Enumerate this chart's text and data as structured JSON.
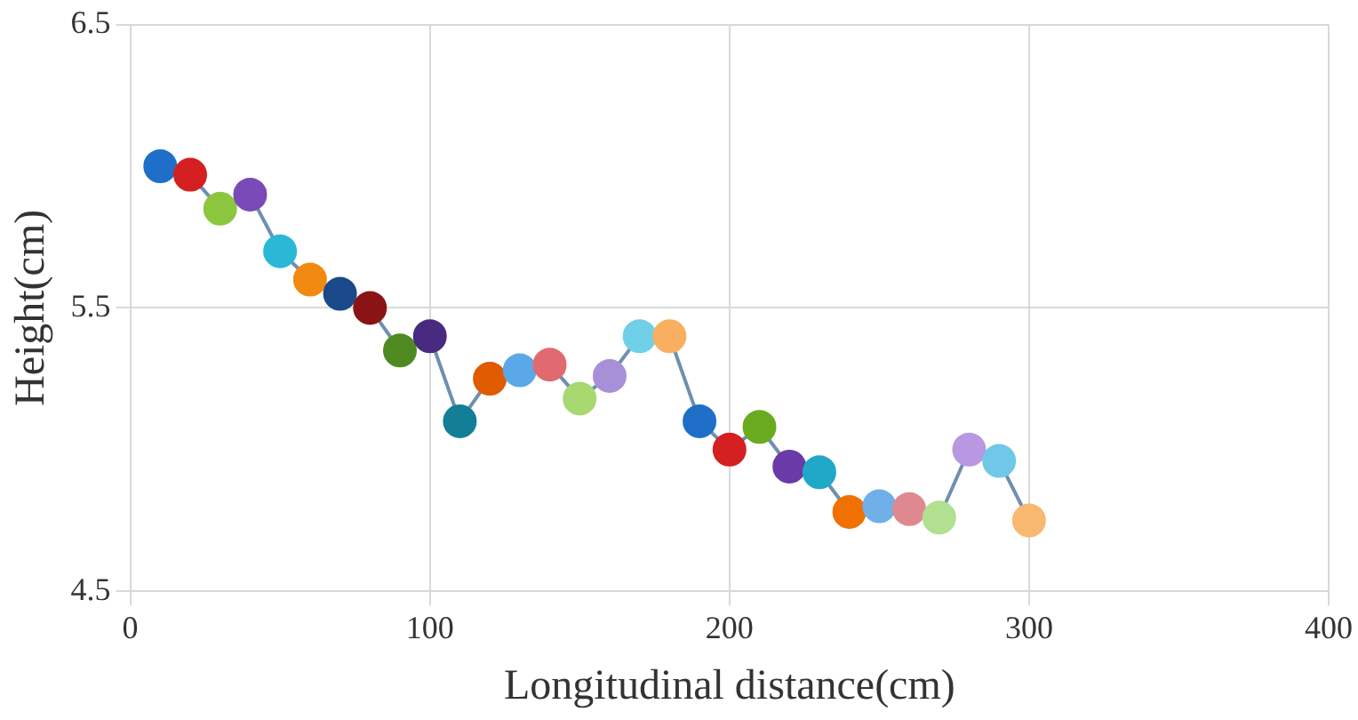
{
  "chart_data": {
    "type": "line",
    "xlabel": "Longitudinal distance(cm)",
    "ylabel": "Height(cm)",
    "x": [
      10,
      20,
      30,
      40,
      50,
      60,
      70,
      80,
      90,
      100,
      110,
      120,
      130,
      140,
      150,
      160,
      170,
      180,
      190,
      200,
      210,
      220,
      230,
      240,
      250,
      260,
      270,
      280,
      290,
      300
    ],
    "values": [
      6.0,
      5.97,
      5.85,
      5.9,
      5.7,
      5.6,
      5.55,
      5.5,
      5.35,
      5.4,
      5.1,
      5.25,
      5.28,
      5.3,
      5.18,
      5.26,
      5.4,
      5.4,
      5.1,
      5.0,
      5.08,
      4.94,
      4.92,
      4.78,
      4.8,
      4.79,
      4.76,
      5.0,
      4.96,
      4.75
    ],
    "color": "#6f8fb0",
    "colors": [
      "#1f6fc8",
      "#d42020",
      "#8cc63e",
      "#7a4bb8",
      "#2ab8d6",
      "#f08a10",
      "#1a4a8a",
      "#8a1414",
      "#4f8a20",
      "#4a2a80",
      "#127f96",
      "#e05a00",
      "#5aa8e8",
      "#e06a70",
      "#a8d870",
      "#a890d8",
      "#70d0e8",
      "#f8b060",
      "#1f6fc8",
      "#d42020",
      "#6aaa20",
      "#6a3aa8",
      "#20a8c8",
      "#f07000",
      "#70b0e8",
      "#e08890",
      "#b0e090",
      "#b898e0",
      "#70c8e8",
      "#f8b870"
    ],
    "xlim": [
      0,
      400
    ],
    "xticks": [
      0,
      100,
      200,
      300,
      400
    ],
    "ylim": [
      4.5,
      6.5
    ],
    "yticks": [
      4.5,
      5.5,
      6.5
    ],
    "grid": true,
    "legend": false,
    "marker": "circle",
    "line_style": "solid"
  }
}
